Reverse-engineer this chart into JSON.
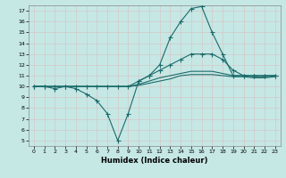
{
  "title": "",
  "xlabel": "Humidex (Indice chaleur)",
  "bg_color": "#c5e8e5",
  "grid_color": "#d4c8c8",
  "line_color": "#1a6b6a",
  "xlim": [
    -0.5,
    23.5
  ],
  "ylim": [
    4.5,
    17.5
  ],
  "xticks": [
    0,
    1,
    2,
    3,
    4,
    5,
    6,
    7,
    8,
    9,
    10,
    11,
    12,
    13,
    14,
    15,
    16,
    17,
    18,
    19,
    20,
    21,
    22,
    23
  ],
  "yticks": [
    5,
    6,
    7,
    8,
    9,
    10,
    11,
    12,
    13,
    14,
    15,
    16,
    17
  ],
  "line1_x": [
    0,
    1,
    2,
    3,
    4,
    5,
    6,
    7,
    8,
    9,
    10,
    11,
    12,
    13,
    14,
    15,
    16,
    17,
    18,
    19,
    20,
    21,
    22,
    23
  ],
  "line1_y": [
    10.0,
    10.0,
    9.8,
    10.0,
    9.8,
    9.3,
    8.7,
    7.5,
    5.0,
    7.5,
    10.5,
    11.0,
    12.0,
    14.5,
    16.0,
    17.2,
    17.4,
    15.0,
    13.0,
    11.0,
    11.0,
    11.0,
    11.0,
    11.0
  ],
  "line2_x": [
    0,
    1,
    2,
    3,
    4,
    5,
    6,
    7,
    8,
    9,
    10,
    11,
    12,
    13,
    14,
    15,
    16,
    17,
    18,
    19,
    20,
    21,
    22,
    23
  ],
  "line2_y": [
    10.0,
    10.0,
    10.0,
    10.0,
    10.0,
    10.0,
    10.0,
    10.0,
    10.0,
    10.0,
    10.5,
    11.0,
    11.5,
    12.0,
    12.5,
    13.0,
    13.0,
    13.0,
    12.5,
    11.5,
    11.0,
    11.0,
    11.0,
    11.0
  ],
  "line3_x": [
    0,
    1,
    2,
    3,
    4,
    5,
    6,
    7,
    8,
    9,
    10,
    11,
    12,
    13,
    14,
    15,
    16,
    17,
    18,
    19,
    20,
    21,
    22,
    23
  ],
  "line3_y": [
    10.0,
    10.0,
    10.0,
    10.0,
    10.0,
    10.0,
    10.0,
    10.0,
    10.0,
    10.0,
    10.2,
    10.5,
    10.8,
    11.0,
    11.2,
    11.4,
    11.4,
    11.4,
    11.2,
    11.0,
    11.0,
    10.9,
    10.9,
    11.0
  ],
  "line4_x": [
    0,
    1,
    2,
    3,
    4,
    5,
    6,
    7,
    8,
    9,
    10,
    11,
    12,
    13,
    14,
    15,
    16,
    17,
    18,
    19,
    20,
    21,
    22,
    23
  ],
  "line4_y": [
    10.0,
    10.0,
    10.0,
    10.0,
    10.0,
    10.0,
    10.0,
    10.0,
    10.0,
    10.0,
    10.1,
    10.3,
    10.5,
    10.7,
    11.0,
    11.1,
    11.1,
    11.1,
    11.0,
    10.9,
    10.9,
    10.8,
    10.8,
    10.9
  ]
}
